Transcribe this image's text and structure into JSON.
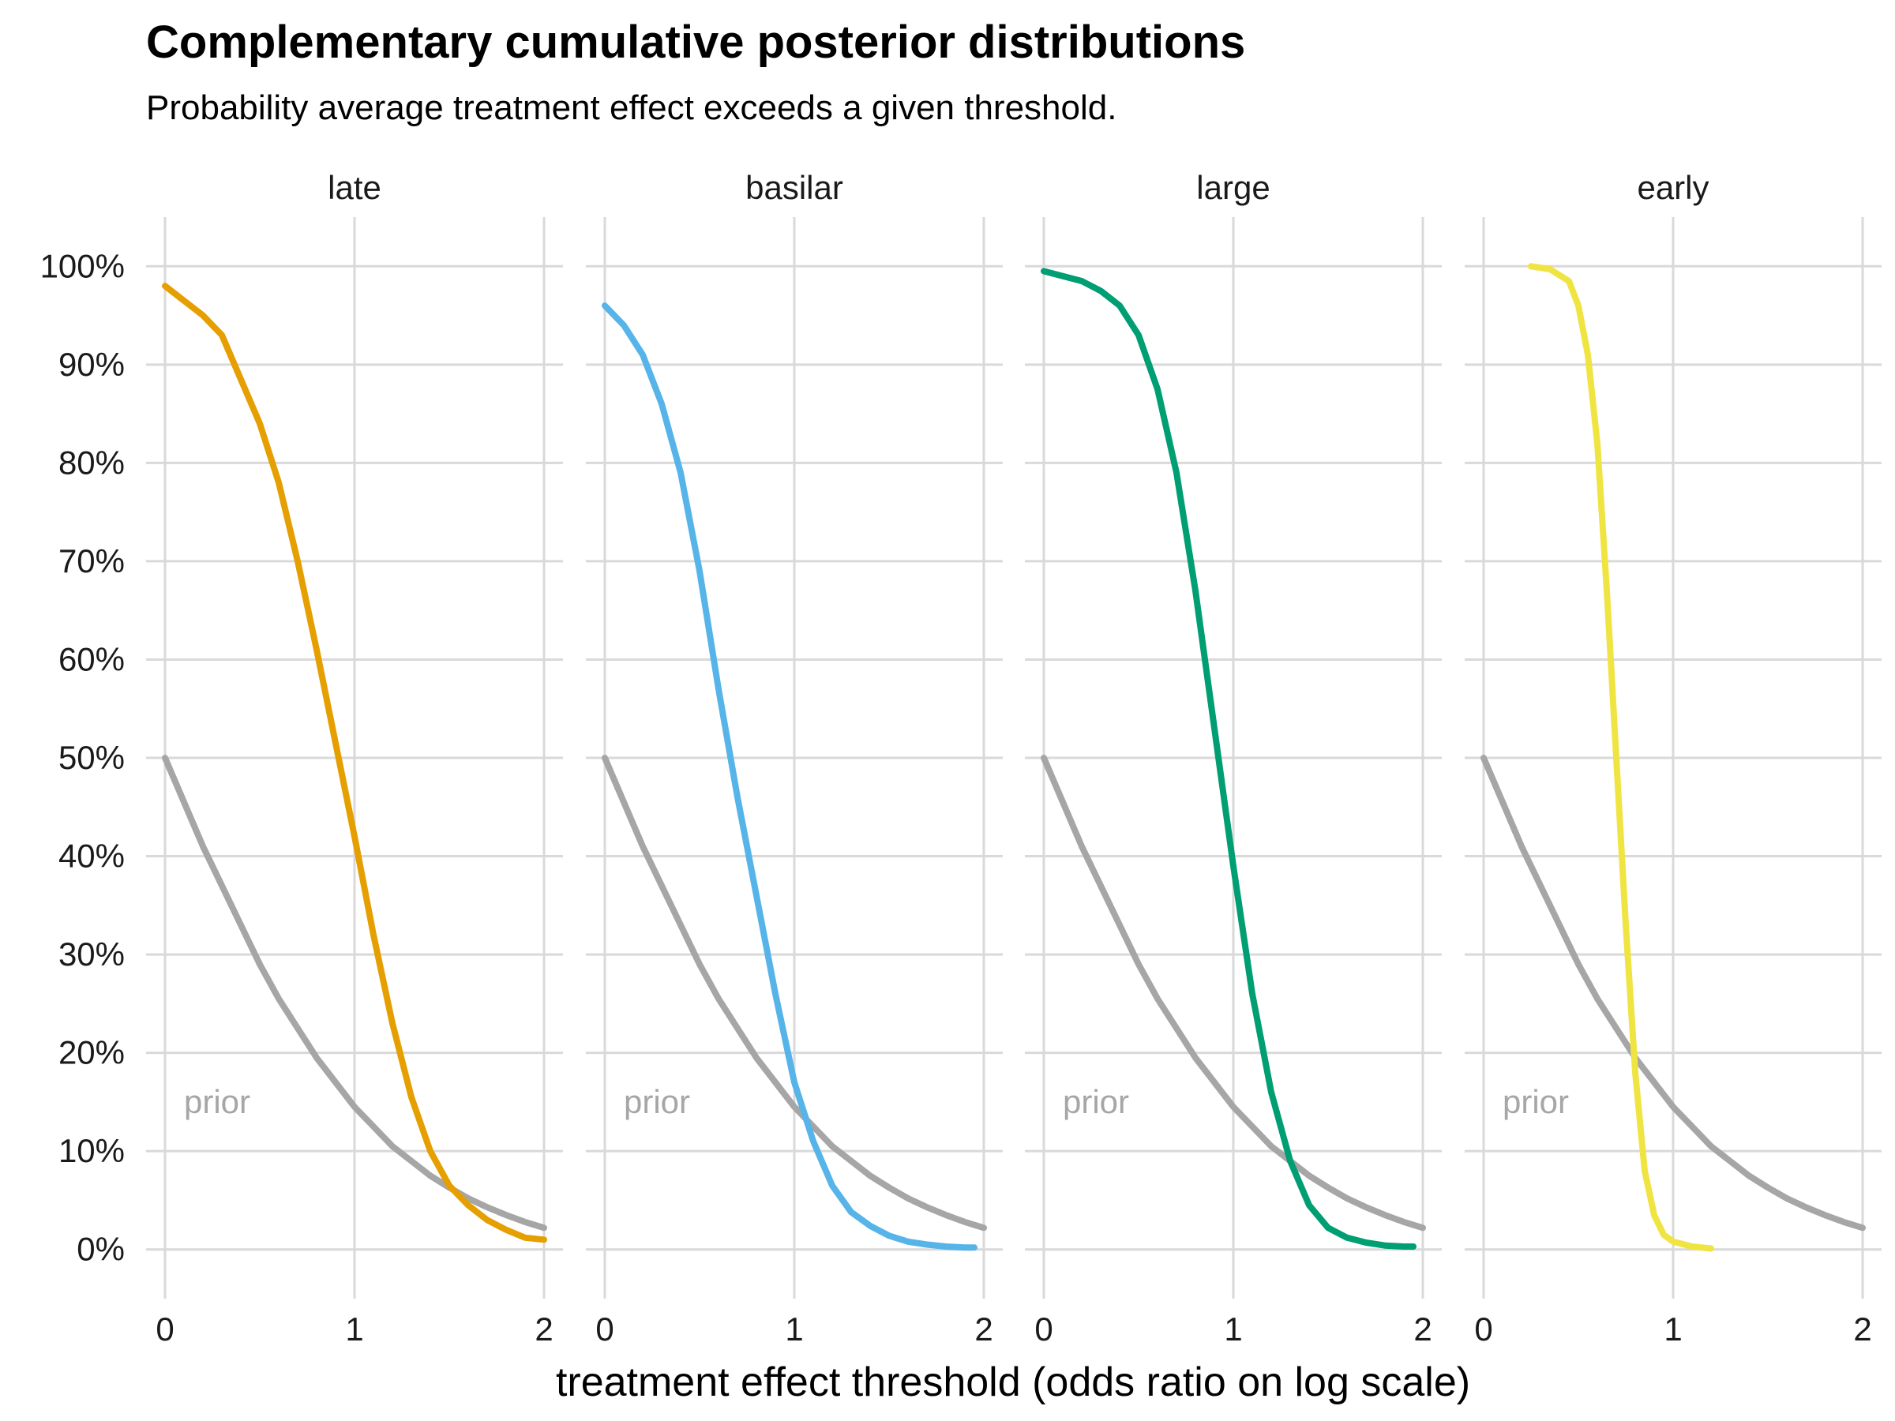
{
  "title": "Complementary cumulative posterior distributions",
  "subtitle": "Probability average treatment effect exceeds a given threshold.",
  "chart_data": {
    "type": "line",
    "xlabel": "treatment effect threshold (odds ratio on log scale)",
    "ylabel": "",
    "xlim": [
      -0.1,
      2.1
    ],
    "ylim": [
      -0.05,
      1.05
    ],
    "x_ticks": [
      0,
      1,
      2
    ],
    "x_tick_labels": [
      "0",
      "1",
      "2"
    ],
    "y_ticks": [
      0,
      0.1,
      0.2,
      0.3,
      0.4,
      0.5,
      0.6,
      0.7,
      0.8,
      0.9,
      1.0
    ],
    "y_tick_labels": [
      "0%",
      "10%",
      "20%",
      "30%",
      "40%",
      "50%",
      "60%",
      "70%",
      "80%",
      "90%",
      "100%"
    ],
    "grid": true,
    "prior": {
      "label": "prior",
      "color": "#a6a6a6",
      "x": [
        0,
        0.1,
        0.2,
        0.3,
        0.4,
        0.5,
        0.6,
        0.7,
        0.8,
        0.9,
        1.0,
        1.1,
        1.2,
        1.3,
        1.4,
        1.5,
        1.6,
        1.7,
        1.8,
        1.9,
        2.0
      ],
      "y": [
        0.5,
        0.455,
        0.41,
        0.37,
        0.33,
        0.29,
        0.255,
        0.225,
        0.195,
        0.17,
        0.145,
        0.125,
        0.105,
        0.09,
        0.075,
        0.063,
        0.052,
        0.043,
        0.035,
        0.028,
        0.022
      ]
    },
    "panels": [
      {
        "name": "late",
        "color": "#e69f00",
        "x": [
          0,
          0.1,
          0.2,
          0.3,
          0.4,
          0.5,
          0.6,
          0.7,
          0.8,
          0.9,
          1.0,
          1.1,
          1.2,
          1.3,
          1.4,
          1.5,
          1.6,
          1.7,
          1.8,
          1.9,
          2.0
        ],
        "y": [
          0.98,
          0.965,
          0.95,
          0.93,
          0.885,
          0.84,
          0.78,
          0.7,
          0.61,
          0.515,
          0.42,
          0.32,
          0.23,
          0.155,
          0.1,
          0.065,
          0.045,
          0.03,
          0.02,
          0.012,
          0.01
        ]
      },
      {
        "name": "basilar",
        "color": "#56b4e9",
        "x": [
          0,
          0.1,
          0.2,
          0.3,
          0.4,
          0.5,
          0.6,
          0.7,
          0.8,
          0.9,
          1.0,
          1.1,
          1.2,
          1.3,
          1.4,
          1.5,
          1.6,
          1.7,
          1.8,
          1.9,
          1.95
        ],
        "y": [
          0.96,
          0.94,
          0.91,
          0.86,
          0.79,
          0.69,
          0.57,
          0.46,
          0.36,
          0.26,
          0.17,
          0.11,
          0.065,
          0.038,
          0.024,
          0.014,
          0.008,
          0.005,
          0.003,
          0.002,
          0.002
        ]
      },
      {
        "name": "large",
        "color": "#009e73",
        "x": [
          0,
          0.1,
          0.2,
          0.3,
          0.4,
          0.5,
          0.6,
          0.7,
          0.8,
          0.9,
          1.0,
          1.1,
          1.2,
          1.3,
          1.4,
          1.5,
          1.6,
          1.7,
          1.8,
          1.9,
          1.95
        ],
        "y": [
          0.995,
          0.99,
          0.985,
          0.975,
          0.96,
          0.93,
          0.875,
          0.79,
          0.67,
          0.53,
          0.39,
          0.26,
          0.16,
          0.09,
          0.045,
          0.022,
          0.012,
          0.007,
          0.004,
          0.003,
          0.003
        ]
      },
      {
        "name": "early",
        "color": "#f0e442",
        "x": [
          0.25,
          0.35,
          0.45,
          0.5,
          0.55,
          0.6,
          0.65,
          0.7,
          0.75,
          0.8,
          0.85,
          0.9,
          0.95,
          1.0,
          1.1,
          1.2
        ],
        "y": [
          1.0,
          0.997,
          0.985,
          0.96,
          0.91,
          0.82,
          0.67,
          0.5,
          0.33,
          0.18,
          0.08,
          0.035,
          0.015,
          0.008,
          0.003,
          0.001
        ]
      }
    ]
  }
}
